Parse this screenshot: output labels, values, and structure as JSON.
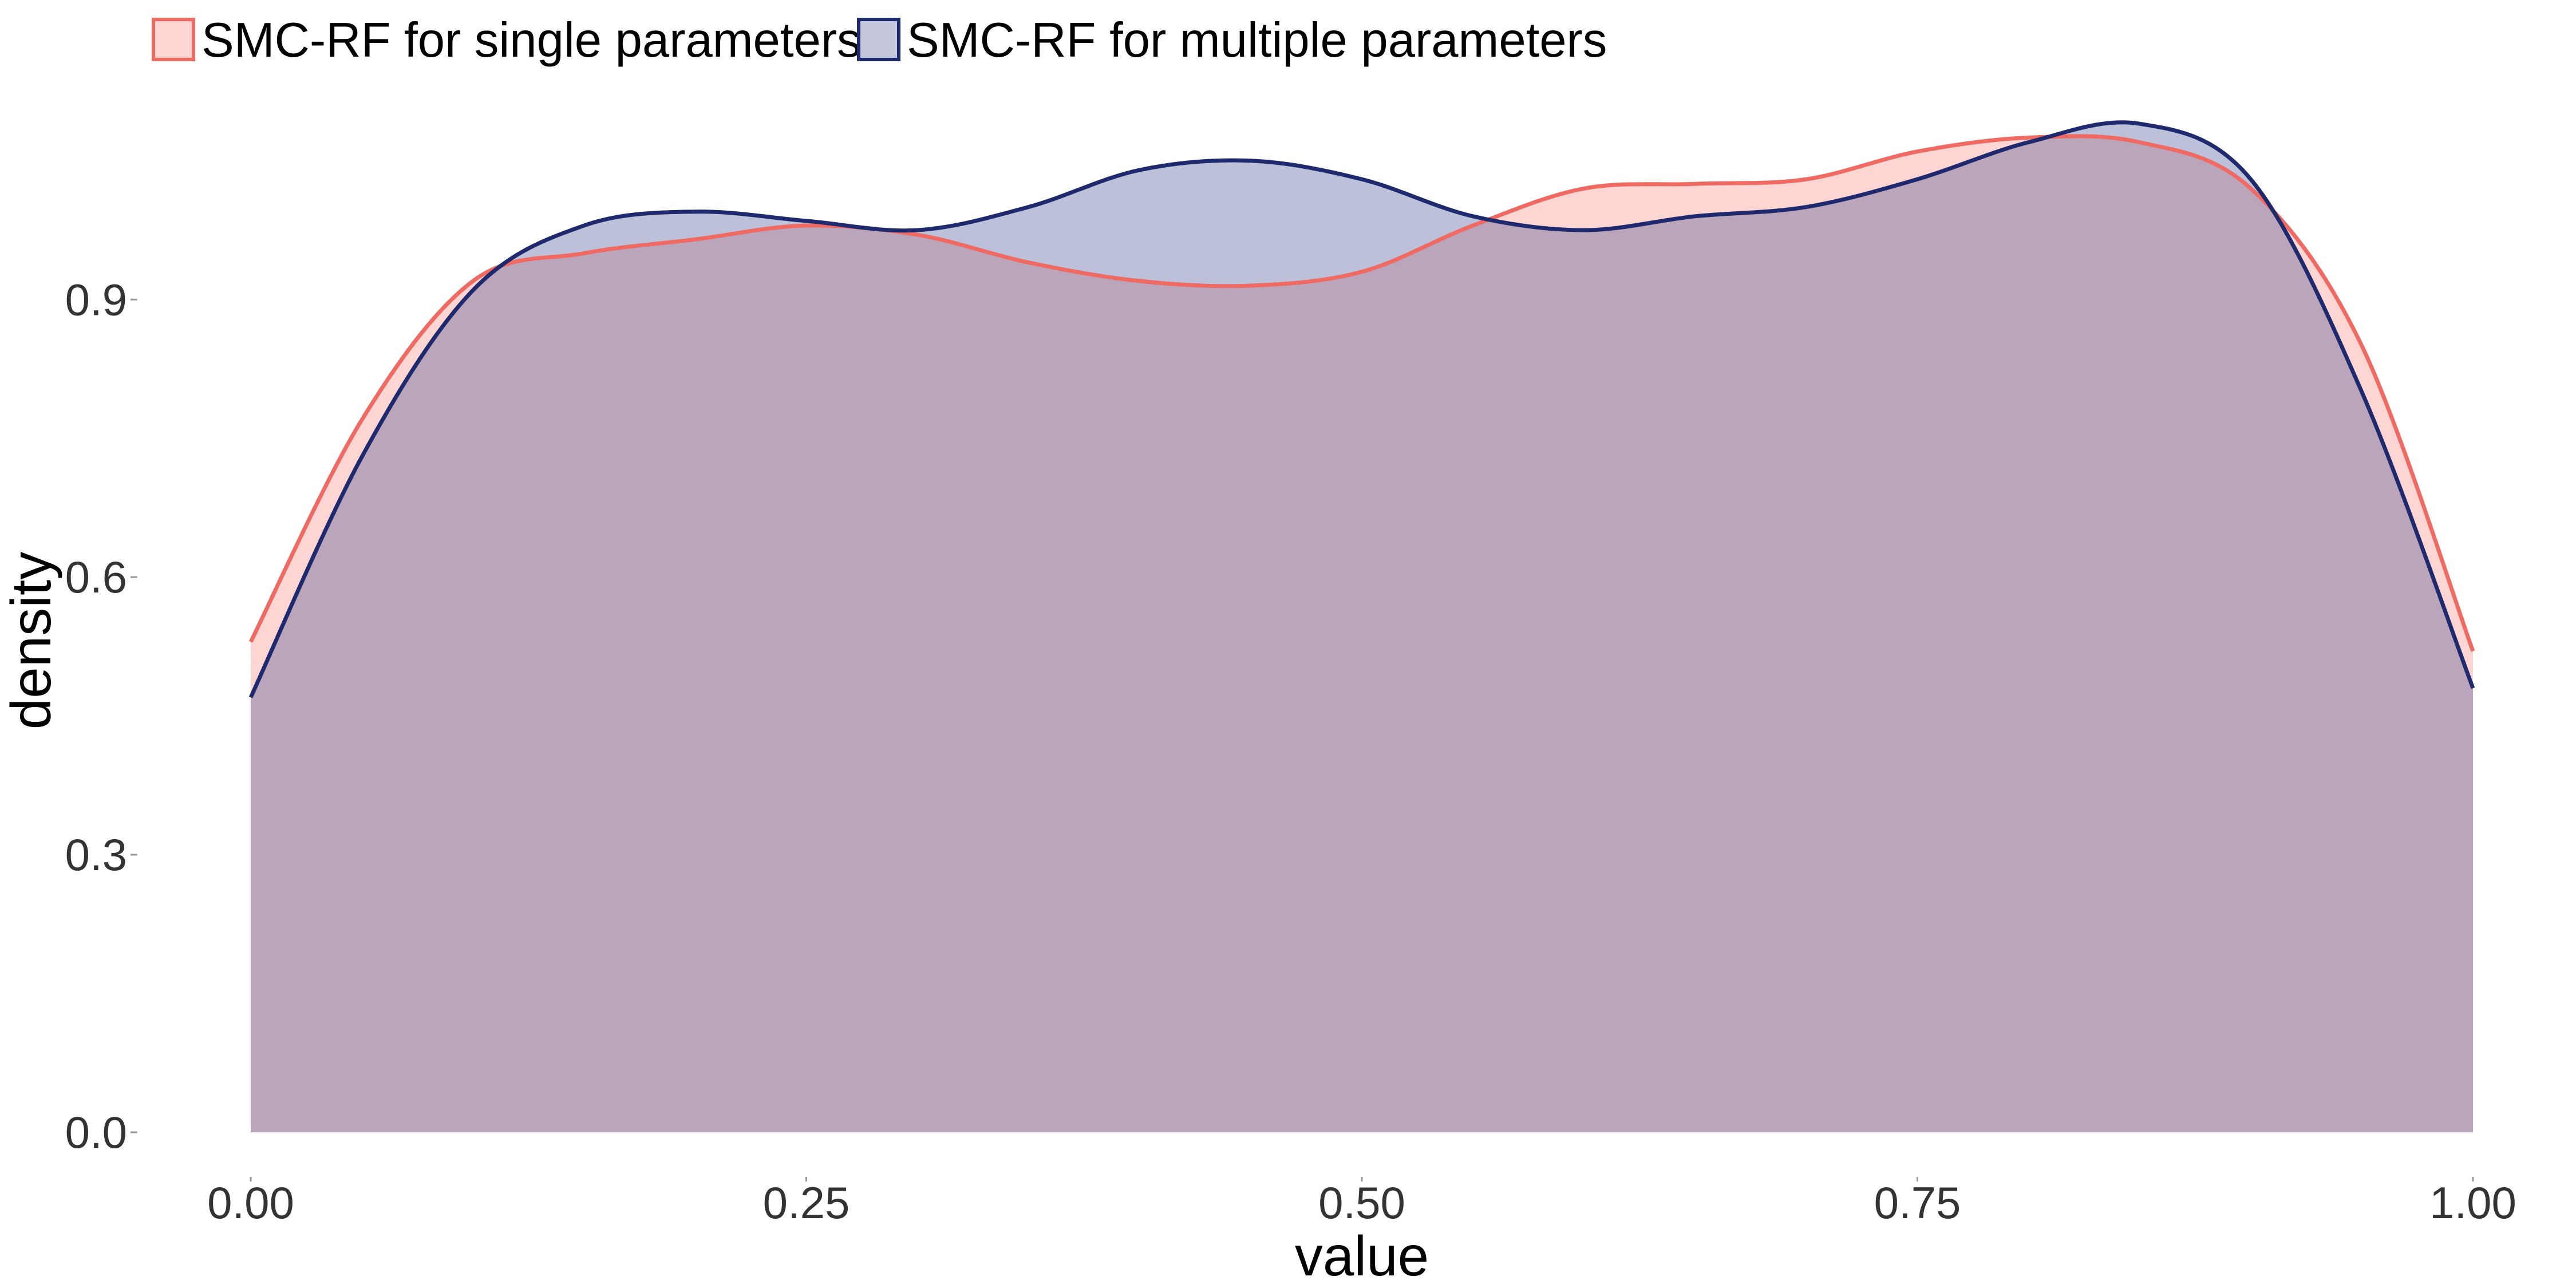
{
  "chart_data": {
    "type": "area",
    "title": "",
    "xlabel": "value",
    "ylabel": "density",
    "xlim": [
      0,
      1
    ],
    "ylim": [
      0,
      1.1
    ],
    "xticks": [
      0.0,
      0.25,
      0.5,
      0.75,
      1.0
    ],
    "xtick_labels": [
      "0.00",
      "0.25",
      "0.50",
      "0.75",
      "1.00"
    ],
    "yticks": [
      0.0,
      0.3,
      0.6,
      0.9
    ],
    "ytick_labels": [
      "0.0",
      "0.3",
      "0.6",
      "0.9"
    ],
    "grid": false,
    "legend_position": "top-left",
    "series": [
      {
        "name": "SMC-RF for single parameters",
        "line_color": "#EF6A63",
        "fill_color": "#F8766D",
        "x": [
          0.0,
          0.05,
          0.1,
          0.15,
          0.2,
          0.25,
          0.3,
          0.35,
          0.4,
          0.45,
          0.5,
          0.55,
          0.6,
          0.65,
          0.7,
          0.75,
          0.8,
          0.85,
          0.9,
          0.95,
          1.0
        ],
        "y": [
          0.53,
          0.77,
          0.92,
          0.95,
          0.965,
          0.98,
          0.97,
          0.94,
          0.92,
          0.915,
          0.93,
          0.98,
          1.02,
          1.025,
          1.03,
          1.06,
          1.075,
          1.07,
          1.02,
          0.85,
          0.52
        ]
      },
      {
        "name": "SMC-RF for multiple parameters",
        "line_color": "#1F2A6E",
        "fill_color": "#3F4A8F",
        "x": [
          0.0,
          0.05,
          0.1,
          0.15,
          0.2,
          0.25,
          0.3,
          0.35,
          0.4,
          0.45,
          0.5,
          0.55,
          0.6,
          0.65,
          0.7,
          0.75,
          0.8,
          0.85,
          0.9,
          0.95,
          1.0
        ],
        "y": [
          0.47,
          0.73,
          0.91,
          0.98,
          0.995,
          0.985,
          0.975,
          1.0,
          1.04,
          1.05,
          1.03,
          0.99,
          0.975,
          0.99,
          1.0,
          1.03,
          1.07,
          1.09,
          1.03,
          0.8,
          0.48
        ]
      }
    ]
  }
}
